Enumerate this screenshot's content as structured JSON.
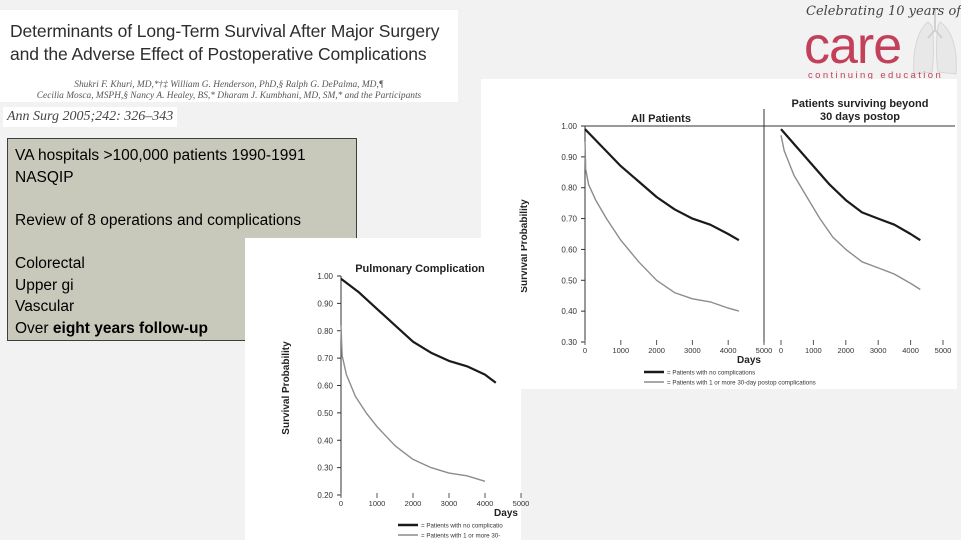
{
  "slide": {
    "paper": {
      "title_lines": [
        "Determinants of Long-Term Survival After Major Surgery",
        "and the Adverse Effect of Postoperative Complications"
      ],
      "author_lines": [
        "Shukri F. Khuri, MD,*†‡ William G. Henderson, PhD,§ Ralph G. DePalma, MD,¶",
        "Cecilia Mosca, MSPH,§ Nancy A. Healey, BS,* Dharam J. Kumbhani, MD, SM,* and the Participants"
      ],
      "citation": "Ann Surg 2005;242: 326–343"
    },
    "notes": {
      "line1": "VA hospitals >100,000 patients 1990-1991",
      "line2": "NASQIP",
      "line3": "Review of 8 operations and complications",
      "line4": "Colorectal",
      "line5": "Upper gi",
      "line6": "Vascular",
      "line7_prefix": "Over ",
      "line7_bold": "eight years follow-up"
    },
    "logo": {
      "tagline": "Celebrating 10 years of",
      "word": "care",
      "subtitle": "continuing education"
    }
  },
  "chart_data": [
    {
      "type": "line",
      "panel_title": "All Patients",
      "ylabel": "Survival Probability",
      "xlabel": "Days",
      "ylim": [
        0.3,
        1.0
      ],
      "xlim": [
        0,
        5000
      ],
      "yticks": [
        "1.00",
        "0.90",
        "0.80",
        "0.70",
        "0.60",
        "0.50",
        "0.40",
        "0.30"
      ],
      "xticks": [
        "0",
        "1000",
        "2000",
        "3000",
        "4000",
        "5000"
      ],
      "series": [
        {
          "name": "Patients with no complications",
          "color": "#1a1a1a",
          "x": [
            0,
            500,
            1000,
            1500,
            2000,
            2500,
            3000,
            3500,
            4000,
            4300
          ],
          "y": [
            0.99,
            0.93,
            0.87,
            0.82,
            0.77,
            0.73,
            0.7,
            0.68,
            0.65,
            0.63
          ]
        },
        {
          "name": "Patients with 1 or more 30-day postop complications",
          "color": "#8c8c8c",
          "x": [
            0,
            20,
            100,
            300,
            600,
            1000,
            1500,
            2000,
            2500,
            3000,
            3500,
            4000,
            4300
          ],
          "y": [
            0.95,
            0.86,
            0.81,
            0.76,
            0.7,
            0.63,
            0.56,
            0.5,
            0.46,
            0.44,
            0.43,
            0.41,
            0.4
          ]
        }
      ]
    },
    {
      "type": "line",
      "panel_title": "Patients surviving beyond 30 days postop",
      "ylabel": "",
      "xlabel": "",
      "ylim": [
        0.3,
        1.0
      ],
      "xlim": [
        0,
        5000
      ],
      "xticks": [
        "0",
        "1000",
        "2000",
        "3000",
        "4000",
        "5000"
      ],
      "legend": [
        "= Patients with no complications",
        "= Patients with 1 or more 30-day postop complications"
      ],
      "series": [
        {
          "name": "Patients with no complications",
          "color": "#1a1a1a",
          "x": [
            0,
            500,
            1000,
            1500,
            2000,
            2500,
            3000,
            3500,
            4000,
            4300
          ],
          "y": [
            0.99,
            0.93,
            0.87,
            0.81,
            0.76,
            0.72,
            0.7,
            0.68,
            0.65,
            0.63
          ]
        },
        {
          "name": "Patients with 1 or more 30-day postop complications",
          "color": "#8c8c8c",
          "x": [
            0,
            100,
            400,
            800,
            1200,
            1600,
            2000,
            2500,
            3000,
            3500,
            4000,
            4300
          ],
          "y": [
            0.97,
            0.92,
            0.84,
            0.77,
            0.7,
            0.64,
            0.6,
            0.56,
            0.54,
            0.52,
            0.49,
            0.47
          ]
        }
      ]
    },
    {
      "type": "line",
      "panel_title": "Pulmonary Complication",
      "ylabel": "Survival Probability",
      "xlabel": "Days",
      "ylim": [
        0.2,
        1.0
      ],
      "xlim": [
        0,
        5000
      ],
      "yticks": [
        "1.00",
        "0.90",
        "0.80",
        "0.70",
        "0.60",
        "0.50",
        "0.40",
        "0.30",
        "0.20"
      ],
      "xticks": [
        "0",
        "1000",
        "2000",
        "3000",
        "4000",
        "5000"
      ],
      "legend": [
        "= Patients with no complicatio",
        "= Patients with 1 or more 30-"
      ],
      "series": [
        {
          "name": "Patients with no complications",
          "color": "#1a1a1a",
          "x": [
            0,
            500,
            1000,
            1500,
            2000,
            2500,
            3000,
            3500,
            4000,
            4300
          ],
          "y": [
            0.99,
            0.94,
            0.88,
            0.82,
            0.76,
            0.72,
            0.69,
            0.67,
            0.64,
            0.61
          ]
        },
        {
          "name": "Patients with 1 or more 30-day postop complications",
          "color": "#8c8c8c",
          "x": [
            0,
            30,
            150,
            400,
            700,
            1000,
            1500,
            2000,
            2500,
            3000,
            3500,
            4000
          ],
          "y": [
            0.82,
            0.71,
            0.64,
            0.56,
            0.5,
            0.45,
            0.38,
            0.33,
            0.3,
            0.28,
            0.27,
            0.25
          ]
        }
      ]
    }
  ]
}
